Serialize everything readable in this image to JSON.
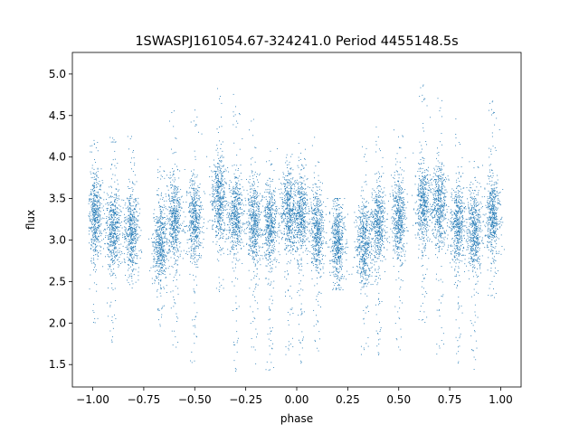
{
  "chart_data": {
    "type": "scatter",
    "title": "1SWASPJ161054.67-324241.0 Period 4455148.5s",
    "xlabel": "phase",
    "ylabel": "flux",
    "xlim": [
      -1.1,
      1.1
    ],
    "ylim": [
      1.23,
      5.26
    ],
    "x_ticks": [
      -1.0,
      -0.75,
      -0.5,
      -0.25,
      0.0,
      0.25,
      0.5,
      0.75,
      1.0
    ],
    "x_tick_labels": [
      "−1.00",
      "−0.75",
      "−0.50",
      "−0.25",
      "0.00",
      "0.25",
      "0.50",
      "0.75",
      "1.00"
    ],
    "y_ticks": [
      1.5,
      2.0,
      2.5,
      3.0,
      3.5,
      4.0,
      4.5,
      5.0
    ],
    "y_tick_labels": [
      "1.5",
      "2.0",
      "2.5",
      "3.0",
      "3.5",
      "4.0",
      "4.5",
      "5.0"
    ],
    "grid": false,
    "series_color": "#1f77b4",
    "clusters": [
      {
        "phase": -0.99,
        "median_flux": 3.3,
        "min_flux": 2.0,
        "max_flux": 4.2
      },
      {
        "phase": -0.9,
        "median_flux": 3.1,
        "min_flux": 1.55,
        "max_flux": 4.3
      },
      {
        "phase": -0.81,
        "median_flux": 3.1,
        "min_flux": 2.4,
        "max_flux": 4.4
      },
      {
        "phase": -0.67,
        "median_flux": 2.95,
        "min_flux": 1.95,
        "max_flux": 4.0
      },
      {
        "phase": -0.6,
        "median_flux": 3.25,
        "min_flux": 1.7,
        "max_flux": 4.6
      },
      {
        "phase": -0.5,
        "median_flux": 3.25,
        "min_flux": 1.5,
        "max_flux": 4.6
      },
      {
        "phase": -0.38,
        "median_flux": 3.5,
        "min_flux": 2.3,
        "max_flux": 4.9
      },
      {
        "phase": -0.3,
        "median_flux": 3.3,
        "min_flux": 1.4,
        "max_flux": 4.8
      },
      {
        "phase": -0.21,
        "median_flux": 3.2,
        "min_flux": 1.5,
        "max_flux": 4.5
      },
      {
        "phase": -0.13,
        "median_flux": 3.2,
        "min_flux": 1.4,
        "max_flux": 4.1
      },
      {
        "phase": -0.04,
        "median_flux": 3.35,
        "min_flux": 1.6,
        "max_flux": 4.1
      },
      {
        "phase": 0.02,
        "median_flux": 3.3,
        "min_flux": 1.5,
        "max_flux": 4.2
      },
      {
        "phase": 0.1,
        "median_flux": 3.1,
        "min_flux": 1.5,
        "max_flux": 4.3
      },
      {
        "phase": 0.2,
        "median_flux": 3.0,
        "min_flux": 2.4,
        "max_flux": 3.5
      },
      {
        "phase": 0.33,
        "median_flux": 2.95,
        "min_flux": 1.6,
        "max_flux": 4.2
      },
      {
        "phase": 0.4,
        "median_flux": 3.2,
        "min_flux": 1.6,
        "max_flux": 4.4
      },
      {
        "phase": 0.5,
        "median_flux": 3.25,
        "min_flux": 1.5,
        "max_flux": 4.5
      },
      {
        "phase": 0.62,
        "median_flux": 3.45,
        "min_flux": 2.0,
        "max_flux": 4.9
      },
      {
        "phase": 0.7,
        "median_flux": 3.4,
        "min_flux": 1.6,
        "max_flux": 4.8
      },
      {
        "phase": 0.79,
        "median_flux": 3.2,
        "min_flux": 1.5,
        "max_flux": 4.5
      },
      {
        "phase": 0.87,
        "median_flux": 3.1,
        "min_flux": 1.4,
        "max_flux": 4.1
      },
      {
        "phase": 0.96,
        "median_flux": 3.3,
        "min_flux": 2.3,
        "max_flux": 4.7
      }
    ]
  }
}
